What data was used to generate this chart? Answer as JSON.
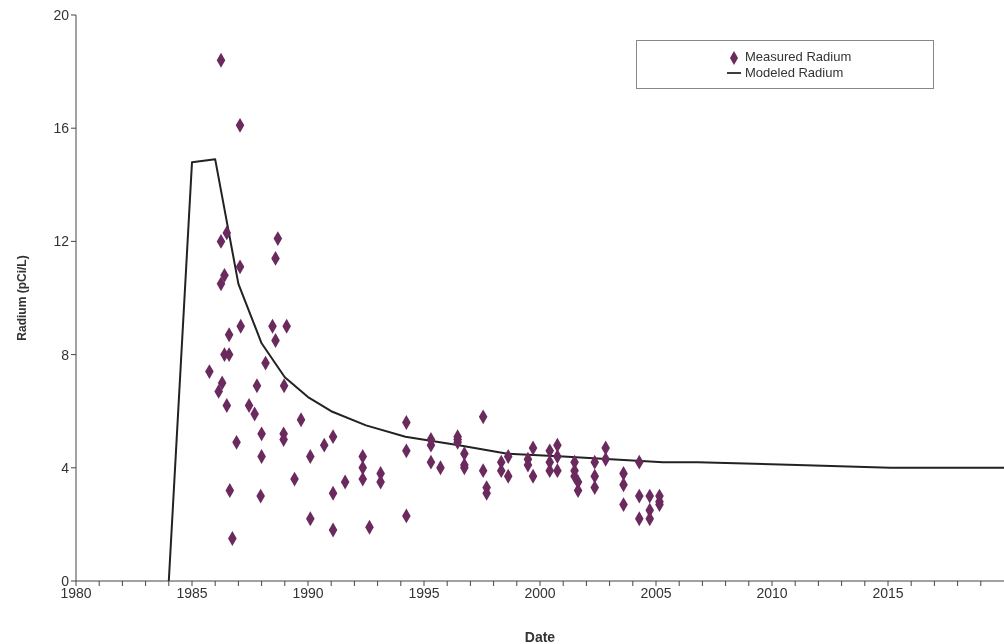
{
  "chart_data": {
    "type": "scatter",
    "xlabel": "Date",
    "ylabel": "Radium (pCi/L)",
    "xlim": [
      1980,
      2020
    ],
    "xticks": [
      1980,
      {
        "value": 1981,
        "label": null
      },
      {
        "value": 1982,
        "label": null
      },
      {
        "value": 1983,
        "label": null
      },
      {
        "value": 1984,
        "label": null
      },
      1985,
      {
        "value": 1986,
        "label": null
      },
      {
        "value": 1987,
        "label": null
      },
      {
        "value": 1988,
        "label": null
      },
      {
        "value": 1989,
        "label": null
      },
      1990,
      {
        "value": 1991,
        "label": null
      },
      {
        "value": 1992,
        "label": null
      },
      {
        "value": 1993,
        "label": null
      },
      {
        "value": 1994,
        "label": null
      },
      1995,
      {
        "value": 1996,
        "label": null
      },
      {
        "value": 1997,
        "label": null
      },
      {
        "value": 1998,
        "label": null
      },
      {
        "value": 1999,
        "label": null
      },
      2000,
      {
        "value": 2001,
        "label": null
      },
      {
        "value": 2002,
        "label": null
      },
      {
        "value": 2003,
        "label": null
      },
      {
        "value": 2004,
        "label": null
      },
      2005,
      {
        "value": 2006,
        "label": null
      },
      {
        "value": 2007,
        "label": null
      },
      {
        "value": 2008,
        "label": null
      },
      {
        "value": 2009,
        "label": null
      },
      2010,
      {
        "value": 2011,
        "label": null
      },
      {
        "value": 2012,
        "label": null
      },
      {
        "value": 2013,
        "label": null
      },
      {
        "value": 2014,
        "label": null
      },
      2015,
      {
        "value": 2016,
        "label": null
      },
      {
        "value": 2017,
        "label": null
      },
      {
        "value": 2018,
        "label": null
      },
      {
        "value": 2019,
        "label": null
      }
    ],
    "ylim": [
      0,
      20
    ],
    "yticks": [
      0,
      4,
      8,
      12,
      16,
      20
    ],
    "grid": false,
    "legend": "top right",
    "series": [
      {
        "name": "Measured Radium",
        "type": "scatter",
        "color": "#6b2a5e",
        "marker": "diamond",
        "x": [
          1986.25,
          1987.07,
          1986.5,
          1986.25,
          1988.7,
          1988.6,
          1987.07,
          1986.4,
          1986.25,
          1986.6,
          1987.1,
          1988.47,
          1989.08,
          1988.6,
          1986.4,
          1986.6,
          1988.17,
          1985.75,
          1986.3,
          1986.15,
          1987.8,
          1988.97,
          1986.5,
          1987.46,
          1987.7,
          1989.7,
          1988.0,
          1988.95,
          1988.95,
          1986.92,
          1990.7,
          1991.08,
          1988.0,
          1990.1,
          1992.36,
          1992.36,
          1992.36,
          1993.13,
          1993.13,
          1991.6,
          1989.42,
          1986.63,
          1987.96,
          1991.08,
          1990.1,
          1991.08,
          1992.65,
          1994.24,
          1986.74,
          1994.24,
          1994.24,
          1995.3,
          1995.3,
          1995.3,
          1995.71,
          1996.45,
          1996.45,
          1996.45,
          1996.74,
          1996.74,
          1996.74,
          1997.55,
          1997.55,
          1997.7,
          1997.7,
          1998.33,
          1998.33,
          1998.63,
          1998.63,
          1999.48,
          1999.48,
          1999.7,
          1999.7,
          2000.42,
          2000.42,
          2000.42,
          2000.75,
          2000.75,
          2000.75,
          2001.49,
          2001.49,
          2001.49,
          2001.64,
          2001.64,
          2002.36,
          2002.36,
          2002.36,
          2002.83,
          2002.83,
          2003.6,
          2003.6,
          2003.6,
          2004.28,
          2004.28,
          2004.28,
          2004.73,
          2004.73,
          2004.73,
          2005.15,
          2005.15,
          2005.15
        ],
        "values": [
          18.4,
          16.1,
          12.3,
          12.0,
          12.1,
          11.4,
          11.1,
          10.8,
          10.5,
          8.7,
          9.0,
          9.0,
          9.0,
          8.5,
          8.0,
          8.0,
          7.7,
          7.4,
          7.0,
          6.7,
          6.9,
          6.9,
          6.2,
          6.2,
          5.9,
          5.7,
          5.2,
          5.2,
          5.0,
          4.9,
          4.8,
          5.1,
          4.4,
          4.4,
          4.4,
          4.0,
          3.6,
          3.8,
          3.5,
          3.5,
          3.6,
          3.2,
          3.0,
          3.1,
          2.2,
          1.8,
          1.9,
          2.3,
          1.5,
          5.6,
          4.6,
          5.0,
          4.8,
          4.2,
          4.0,
          5.1,
          5.0,
          4.9,
          4.5,
          4.1,
          4.0,
          5.8,
          3.9,
          3.3,
          3.1,
          4.2,
          3.9,
          4.4,
          3.7,
          4.3,
          4.1,
          4.7,
          3.7,
          4.6,
          4.2,
          3.9,
          4.8,
          4.4,
          3.9,
          4.2,
          3.9,
          3.7,
          3.5,
          3.2,
          4.2,
          3.7,
          3.3,
          4.7,
          4.3,
          3.8,
          3.4,
          2.7,
          4.2,
          3.0,
          2.2,
          3.0,
          2.5,
          2.2,
          3.0,
          2.8,
          2.7
        ]
      },
      {
        "name": "Modeled Radium",
        "type": "line",
        "color": "#222222",
        "marker": "none",
        "line_style": "solid",
        "x": [
          1984.0,
          1985.0,
          1986.0,
          1987.0,
          1988.0,
          1989.0,
          1990.0,
          1991.0,
          1992.5,
          1994.2,
          1996.5,
          1998.6,
          2001.0,
          2005.3,
          2006.8,
          2011.1,
          2015.1,
          2020.0
        ],
        "values": [
          0,
          14.8,
          14.9,
          10.5,
          8.4,
          7.2,
          6.5,
          6.0,
          5.5,
          5.1,
          4.8,
          4.5,
          4.4,
          4.2,
          4.2,
          4.1,
          4.0,
          4.0
        ]
      }
    ]
  }
}
